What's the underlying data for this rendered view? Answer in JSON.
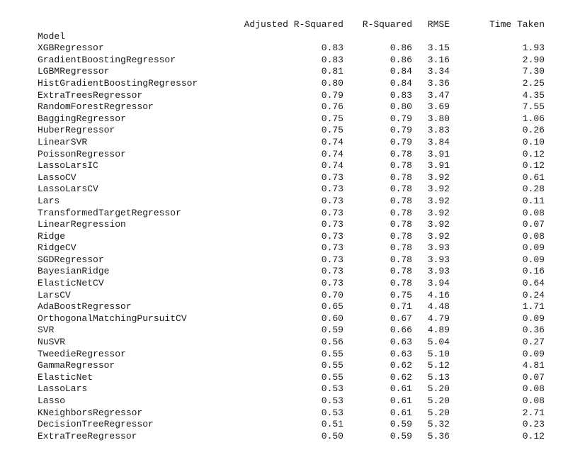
{
  "columns": {
    "index_name": "Model",
    "headers": [
      "Adjusted R-Squared",
      "R-Squared",
      "RMSE",
      "Time Taken"
    ]
  },
  "rows": [
    {
      "model": "XGBRegressor",
      "adj_r2": "0.83",
      "r2": "0.86",
      "rmse": "3.15",
      "time": "1.93"
    },
    {
      "model": "GradientBoostingRegressor",
      "adj_r2": "0.83",
      "r2": "0.86",
      "rmse": "3.16",
      "time": "2.90"
    },
    {
      "model": "LGBMRegressor",
      "adj_r2": "0.81",
      "r2": "0.84",
      "rmse": "3.34",
      "time": "7.30"
    },
    {
      "model": "HistGradientBoostingRegressor",
      "adj_r2": "0.80",
      "r2": "0.84",
      "rmse": "3.36",
      "time": "2.25"
    },
    {
      "model": "ExtraTreesRegressor",
      "adj_r2": "0.79",
      "r2": "0.83",
      "rmse": "3.47",
      "time": "4.35"
    },
    {
      "model": "RandomForestRegressor",
      "adj_r2": "0.76",
      "r2": "0.80",
      "rmse": "3.69",
      "time": "7.55"
    },
    {
      "model": "BaggingRegressor",
      "adj_r2": "0.75",
      "r2": "0.79",
      "rmse": "3.80",
      "time": "1.06"
    },
    {
      "model": "HuberRegressor",
      "adj_r2": "0.75",
      "r2": "0.79",
      "rmse": "3.83",
      "time": "0.26"
    },
    {
      "model": "LinearSVR",
      "adj_r2": "0.74",
      "r2": "0.79",
      "rmse": "3.84",
      "time": "0.10"
    },
    {
      "model": "PoissonRegressor",
      "adj_r2": "0.74",
      "r2": "0.78",
      "rmse": "3.91",
      "time": "0.12"
    },
    {
      "model": "LassoLarsIC",
      "adj_r2": "0.74",
      "r2": "0.78",
      "rmse": "3.91",
      "time": "0.12"
    },
    {
      "model": "LassoCV",
      "adj_r2": "0.73",
      "r2": "0.78",
      "rmse": "3.92",
      "time": "0.61"
    },
    {
      "model": "LassoLarsCV",
      "adj_r2": "0.73",
      "r2": "0.78",
      "rmse": "3.92",
      "time": "0.28"
    },
    {
      "model": "Lars",
      "adj_r2": "0.73",
      "r2": "0.78",
      "rmse": "3.92",
      "time": "0.11"
    },
    {
      "model": "TransformedTargetRegressor",
      "adj_r2": "0.73",
      "r2": "0.78",
      "rmse": "3.92",
      "time": "0.08"
    },
    {
      "model": "LinearRegression",
      "adj_r2": "0.73",
      "r2": "0.78",
      "rmse": "3.92",
      "time": "0.07"
    },
    {
      "model": "Ridge",
      "adj_r2": "0.73",
      "r2": "0.78",
      "rmse": "3.92",
      "time": "0.08"
    },
    {
      "model": "RidgeCV",
      "adj_r2": "0.73",
      "r2": "0.78",
      "rmse": "3.93",
      "time": "0.09"
    },
    {
      "model": "SGDRegressor",
      "adj_r2": "0.73",
      "r2": "0.78",
      "rmse": "3.93",
      "time": "0.09"
    },
    {
      "model": "BayesianRidge",
      "adj_r2": "0.73",
      "r2": "0.78",
      "rmse": "3.93",
      "time": "0.16"
    },
    {
      "model": "ElasticNetCV",
      "adj_r2": "0.73",
      "r2": "0.78",
      "rmse": "3.94",
      "time": "0.64"
    },
    {
      "model": "LarsCV",
      "adj_r2": "0.70",
      "r2": "0.75",
      "rmse": "4.16",
      "time": "0.24"
    },
    {
      "model": "AdaBoostRegressor",
      "adj_r2": "0.65",
      "r2": "0.71",
      "rmse": "4.48",
      "time": "1.71"
    },
    {
      "model": "OrthogonalMatchingPursuitCV",
      "adj_r2": "0.60",
      "r2": "0.67",
      "rmse": "4.79",
      "time": "0.09"
    },
    {
      "model": "SVR",
      "adj_r2": "0.59",
      "r2": "0.66",
      "rmse": "4.89",
      "time": "0.36"
    },
    {
      "model": "NuSVR",
      "adj_r2": "0.56",
      "r2": "0.63",
      "rmse": "5.04",
      "time": "0.27"
    },
    {
      "model": "TweedieRegressor",
      "adj_r2": "0.55",
      "r2": "0.63",
      "rmse": "5.10",
      "time": "0.09"
    },
    {
      "model": "GammaRegressor",
      "adj_r2": "0.55",
      "r2": "0.62",
      "rmse": "5.12",
      "time": "4.81"
    },
    {
      "model": "ElasticNet",
      "adj_r2": "0.55",
      "r2": "0.62",
      "rmse": "5.13",
      "time": "0.07"
    },
    {
      "model": "LassoLars",
      "adj_r2": "0.53",
      "r2": "0.61",
      "rmse": "5.20",
      "time": "0.08"
    },
    {
      "model": "Lasso",
      "adj_r2": "0.53",
      "r2": "0.61",
      "rmse": "5.20",
      "time": "0.08"
    },
    {
      "model": "KNeighborsRegressor",
      "adj_r2": "0.53",
      "r2": "0.61",
      "rmse": "5.20",
      "time": "2.71"
    },
    {
      "model": "DecisionTreeRegressor",
      "adj_r2": "0.51",
      "r2": "0.59",
      "rmse": "5.32",
      "time": "0.23"
    },
    {
      "model": "ExtraTreeRegressor",
      "adj_r2": "0.50",
      "r2": "0.59",
      "rmse": "5.36",
      "time": "0.12"
    }
  ]
}
